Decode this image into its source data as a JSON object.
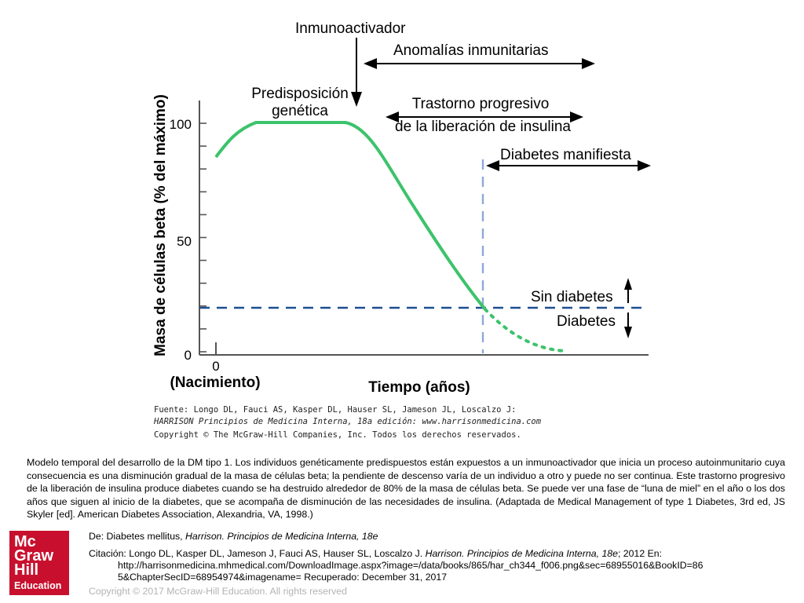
{
  "diagram": {
    "ylabel": "Masa de células beta (% del máximo)",
    "xlabel": "Tiempo (años)",
    "y_ticks": [
      "100",
      "50",
      "0"
    ],
    "x_origin": {
      "value": "0",
      "label": "(Nacimiento)"
    },
    "labels": {
      "inmunoactivador": "Inmunoactivador",
      "anomalias": "Anomalías inmunitarias",
      "predisposicion_1": "Predisposición",
      "predisposicion_2": "genética",
      "trastorno_1": "Trastorno progresivo",
      "trastorno_2": "de la liberación de insulina",
      "diabetes_manifiesta": "Diabetes manifiesta",
      "sin_diabetes": "Sin diabetes",
      "diabetes": "Diabetes"
    },
    "source": [
      "Fuente: Longo DL, Fauci AS, Kasper DL, Hauser SL, Jameson JL, Loscalzo J:",
      "HARRISON Principios de Medicina Interna, 18a edición: www.harrisonmedicina.com",
      "Copyright © The McGraw-Hill Companies, Inc. Todos los derechos reservados."
    ],
    "colors": {
      "curve": "#3cc36b",
      "threshold": "#1d4f91",
      "onset": "#8fa8d8",
      "axis": "#555555"
    }
  },
  "caption": "Modelo temporal del desarrollo de la DM tipo 1. Los individuos genéticamente predispuestos están expuestos a un inmunoactivador que inicia un proceso autoinmunitario cuya consecuencia es una disminución gradual de la masa de células beta; la pendiente de descenso varía de un individuo a otro y puede no ser continua. Este trastorno progresivo de la liberación de insulina produce diabetes cuando se ha destruido alrededor de 80% de la masa de células beta. Se puede ver una fase de “luna de miel” en el año o los dos años que siguen al inicio de la diabetes, que se acompaña de disminución de las necesidades de insulina. (Adaptada de Medical Management of type 1 Diabetes, 3rd ed, JS Skyler [ed]. American Diabetes Association, Alexandria, VA, 1998.)",
  "logo": {
    "line1": "Mc",
    "line2": "Graw",
    "line3": "Hill",
    "line4": "Education"
  },
  "reference": {
    "from_prefix": "De: Diabetes mellitus, ",
    "from_title": "Harrison. Principios de Medicina Interna, 18e",
    "citation_prefix": "Citación: Longo DL, Kasper DL, Jameson J, Fauci AS, Hauser SL, Loscalzo J",
    "citation_sep": ". ",
    "citation_title": "Harrison. Principios de Medicina Interna, 18e",
    "citation_suffix": "; 2012 En:",
    "url_line1": "http://harrisonmedicina.mhmedical.com/DownloadImage.aspx?image=/data/books/865/har_ch344_f006.png&sec=68955016&BookID=86",
    "url_line2": "5&ChapterSecID=68954974&imagename= Recuperado: December 31, 2017"
  },
  "copyright": "Copyright © 2017 McGraw-Hill Education. All rights reserved"
}
